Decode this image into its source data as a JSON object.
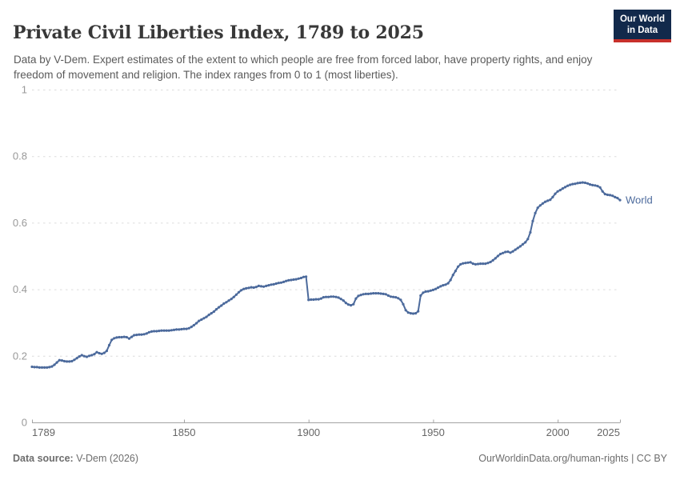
{
  "header": {
    "title": "Private Civil Liberties Index, 1789 to 2025",
    "subtitle": "Data by V-Dem. Expert estimates of the extent to which people are free from forced labor, have property rights, and enjoy freedom of movement and religion. The index ranges from 0 to 1 (most liberties).",
    "logo": {
      "line1": "Our World",
      "line2": "in Data"
    }
  },
  "colors": {
    "line": "#4C6A9C",
    "logo_bg": "#12294B",
    "logo_red": "#C7302B"
  },
  "footer": {
    "source_label": "Data source:",
    "source_value": " V-Dem (2026)",
    "credit": "OurWorldinData.org/human-rights | CC BY"
  },
  "chart_data": {
    "type": "line",
    "title": "Private Civil Liberties Index, 1789 to 2025",
    "xlabel": "",
    "ylabel": "",
    "xlim": [
      1789,
      2025
    ],
    "ylim": [
      0,
      1
    ],
    "xticks": [
      1789,
      1850,
      1900,
      1950,
      2000,
      2025
    ],
    "yticks": [
      0,
      0.2,
      0.4,
      0.6,
      0.8,
      1
    ],
    "grid": "horizontal-dashed",
    "legend_position": "end-of-line",
    "series": [
      {
        "name": "World",
        "points": [
          [
            1789,
            0.167
          ],
          [
            1790,
            0.166
          ],
          [
            1791,
            0.166
          ],
          [
            1792,
            0.165
          ],
          [
            1793,
            0.165
          ],
          [
            1794,
            0.165
          ],
          [
            1795,
            0.165
          ],
          [
            1796,
            0.166
          ],
          [
            1797,
            0.168
          ],
          [
            1798,
            0.173
          ],
          [
            1799,
            0.18
          ],
          [
            1800,
            0.187
          ],
          [
            1801,
            0.186
          ],
          [
            1802,
            0.184
          ],
          [
            1803,
            0.183
          ],
          [
            1804,
            0.183
          ],
          [
            1805,
            0.184
          ],
          [
            1806,
            0.188
          ],
          [
            1807,
            0.193
          ],
          [
            1808,
            0.198
          ],
          [
            1809,
            0.202
          ],
          [
            1810,
            0.199
          ],
          [
            1811,
            0.197
          ],
          [
            1812,
            0.2
          ],
          [
            1813,
            0.202
          ],
          [
            1814,
            0.205
          ],
          [
            1815,
            0.211
          ],
          [
            1816,
            0.208
          ],
          [
            1817,
            0.206
          ],
          [
            1818,
            0.209
          ],
          [
            1819,
            0.215
          ],
          [
            1820,
            0.232
          ],
          [
            1821,
            0.248
          ],
          [
            1822,
            0.253
          ],
          [
            1823,
            0.255
          ],
          [
            1824,
            0.256
          ],
          [
            1825,
            0.256
          ],
          [
            1826,
            0.257
          ],
          [
            1827,
            0.256
          ],
          [
            1828,
            0.252
          ],
          [
            1829,
            0.257
          ],
          [
            1830,
            0.262
          ],
          [
            1831,
            0.263
          ],
          [
            1832,
            0.264
          ],
          [
            1833,
            0.264
          ],
          [
            1834,
            0.265
          ],
          [
            1835,
            0.267
          ],
          [
            1836,
            0.271
          ],
          [
            1837,
            0.273
          ],
          [
            1838,
            0.274
          ],
          [
            1839,
            0.274
          ],
          [
            1840,
            0.275
          ],
          [
            1841,
            0.276
          ],
          [
            1842,
            0.276
          ],
          [
            1843,
            0.276
          ],
          [
            1844,
            0.276
          ],
          [
            1845,
            0.277
          ],
          [
            1846,
            0.278
          ],
          [
            1847,
            0.279
          ],
          [
            1848,
            0.279
          ],
          [
            1849,
            0.28
          ],
          [
            1850,
            0.281
          ],
          [
            1851,
            0.281
          ],
          [
            1852,
            0.283
          ],
          [
            1853,
            0.287
          ],
          [
            1854,
            0.292
          ],
          [
            1855,
            0.298
          ],
          [
            1856,
            0.305
          ],
          [
            1857,
            0.309
          ],
          [
            1858,
            0.313
          ],
          [
            1859,
            0.317
          ],
          [
            1860,
            0.323
          ],
          [
            1861,
            0.328
          ],
          [
            1862,
            0.333
          ],
          [
            1863,
            0.34
          ],
          [
            1864,
            0.346
          ],
          [
            1865,
            0.351
          ],
          [
            1866,
            0.357
          ],
          [
            1867,
            0.361
          ],
          [
            1868,
            0.366
          ],
          [
            1869,
            0.371
          ],
          [
            1870,
            0.377
          ],
          [
            1871,
            0.384
          ],
          [
            1872,
            0.391
          ],
          [
            1873,
            0.397
          ],
          [
            1874,
            0.401
          ],
          [
            1875,
            0.403
          ],
          [
            1876,
            0.404
          ],
          [
            1877,
            0.406
          ],
          [
            1878,
            0.405
          ],
          [
            1879,
            0.407
          ],
          [
            1880,
            0.41
          ],
          [
            1881,
            0.409
          ],
          [
            1882,
            0.408
          ],
          [
            1883,
            0.41
          ],
          [
            1884,
            0.412
          ],
          [
            1885,
            0.414
          ],
          [
            1886,
            0.415
          ],
          [
            1887,
            0.417
          ],
          [
            1888,
            0.419
          ],
          [
            1889,
            0.42
          ],
          [
            1890,
            0.422
          ],
          [
            1891,
            0.425
          ],
          [
            1892,
            0.427
          ],
          [
            1893,
            0.428
          ],
          [
            1894,
            0.429
          ],
          [
            1895,
            0.43
          ],
          [
            1896,
            0.432
          ],
          [
            1897,
            0.434
          ],
          [
            1898,
            0.437
          ],
          [
            1899,
            0.438
          ],
          [
            1900,
            0.368
          ],
          [
            1901,
            0.369
          ],
          [
            1902,
            0.369
          ],
          [
            1903,
            0.37
          ],
          [
            1904,
            0.37
          ],
          [
            1905,
            0.372
          ],
          [
            1906,
            0.376
          ],
          [
            1907,
            0.377
          ],
          [
            1908,
            0.377
          ],
          [
            1909,
            0.378
          ],
          [
            1910,
            0.378
          ],
          [
            1911,
            0.377
          ],
          [
            1912,
            0.375
          ],
          [
            1913,
            0.371
          ],
          [
            1914,
            0.366
          ],
          [
            1915,
            0.359
          ],
          [
            1916,
            0.354
          ],
          [
            1917,
            0.352
          ],
          [
            1918,
            0.355
          ],
          [
            1919,
            0.372
          ],
          [
            1920,
            0.38
          ],
          [
            1921,
            0.383
          ],
          [
            1922,
            0.385
          ],
          [
            1923,
            0.386
          ],
          [
            1924,
            0.386
          ],
          [
            1925,
            0.387
          ],
          [
            1926,
            0.388
          ],
          [
            1927,
            0.388
          ],
          [
            1928,
            0.388
          ],
          [
            1929,
            0.387
          ],
          [
            1930,
            0.386
          ],
          [
            1931,
            0.385
          ],
          [
            1932,
            0.381
          ],
          [
            1933,
            0.378
          ],
          [
            1934,
            0.377
          ],
          [
            1935,
            0.376
          ],
          [
            1936,
            0.373
          ],
          [
            1937,
            0.368
          ],
          [
            1938,
            0.355
          ],
          [
            1939,
            0.337
          ],
          [
            1940,
            0.33
          ],
          [
            1941,
            0.328
          ],
          [
            1942,
            0.327
          ],
          [
            1943,
            0.328
          ],
          [
            1944,
            0.334
          ],
          [
            1945,
            0.381
          ],
          [
            1946,
            0.39
          ],
          [
            1947,
            0.393
          ],
          [
            1948,
            0.394
          ],
          [
            1949,
            0.396
          ],
          [
            1950,
            0.398
          ],
          [
            1951,
            0.401
          ],
          [
            1952,
            0.405
          ],
          [
            1953,
            0.409
          ],
          [
            1954,
            0.412
          ],
          [
            1955,
            0.414
          ],
          [
            1956,
            0.418
          ],
          [
            1957,
            0.428
          ],
          [
            1958,
            0.443
          ],
          [
            1959,
            0.455
          ],
          [
            1960,
            0.468
          ],
          [
            1961,
            0.475
          ],
          [
            1962,
            0.478
          ],
          [
            1963,
            0.479
          ],
          [
            1964,
            0.48
          ],
          [
            1965,
            0.481
          ],
          [
            1966,
            0.477
          ],
          [
            1967,
            0.475
          ],
          [
            1968,
            0.476
          ],
          [
            1969,
            0.477
          ],
          [
            1970,
            0.477
          ],
          [
            1971,
            0.477
          ],
          [
            1972,
            0.479
          ],
          [
            1973,
            0.482
          ],
          [
            1974,
            0.487
          ],
          [
            1975,
            0.493
          ],
          [
            1976,
            0.5
          ],
          [
            1977,
            0.506
          ],
          [
            1978,
            0.509
          ],
          [
            1979,
            0.512
          ],
          [
            1980,
            0.513
          ],
          [
            1981,
            0.51
          ],
          [
            1982,
            0.514
          ],
          [
            1983,
            0.519
          ],
          [
            1984,
            0.524
          ],
          [
            1985,
            0.529
          ],
          [
            1986,
            0.535
          ],
          [
            1987,
            0.541
          ],
          [
            1988,
            0.551
          ],
          [
            1989,
            0.571
          ],
          [
            1990,
            0.605
          ],
          [
            1991,
            0.629
          ],
          [
            1992,
            0.645
          ],
          [
            1993,
            0.652
          ],
          [
            1994,
            0.658
          ],
          [
            1995,
            0.663
          ],
          [
            1996,
            0.666
          ],
          [
            1997,
            0.669
          ],
          [
            1998,
            0.677
          ],
          [
            1999,
            0.687
          ],
          [
            2000,
            0.694
          ],
          [
            2001,
            0.698
          ],
          [
            2002,
            0.703
          ],
          [
            2003,
            0.707
          ],
          [
            2004,
            0.711
          ],
          [
            2005,
            0.714
          ],
          [
            2006,
            0.716
          ],
          [
            2007,
            0.717
          ],
          [
            2008,
            0.719
          ],
          [
            2009,
            0.72
          ],
          [
            2010,
            0.721
          ],
          [
            2011,
            0.72
          ],
          [
            2012,
            0.718
          ],
          [
            2013,
            0.715
          ],
          [
            2014,
            0.713
          ],
          [
            2015,
            0.712
          ],
          [
            2016,
            0.71
          ],
          [
            2017,
            0.706
          ],
          [
            2018,
            0.694
          ],
          [
            2019,
            0.686
          ],
          [
            2020,
            0.684
          ],
          [
            2021,
            0.683
          ],
          [
            2022,
            0.681
          ],
          [
            2023,
            0.677
          ],
          [
            2024,
            0.674
          ],
          [
            2025,
            0.668
          ]
        ]
      }
    ]
  }
}
